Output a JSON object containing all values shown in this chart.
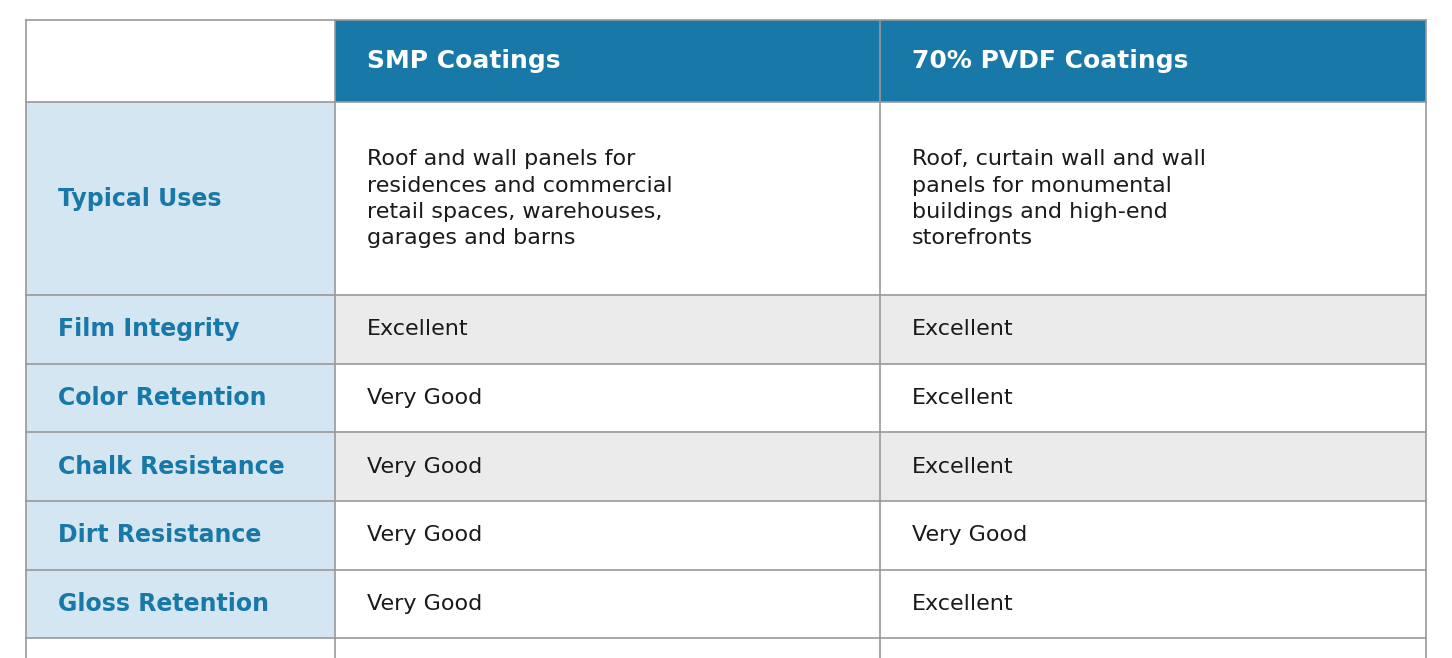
{
  "header_bg_color": "#1878a8",
  "header_text_color": "#ffffff",
  "label_col_bg": "#d4e6f1",
  "row_bg_colors": [
    "#ffffff",
    "#ebebeb",
    "#ffffff",
    "#ebebeb",
    "#ffffff"
  ],
  "border_color": "#999999",
  "label_text_color": "#1878a8",
  "body_text_color": "#1a1a1a",
  "col_headers": [
    "SMP Coatings",
    "70% PVDF Coatings"
  ],
  "row_labels": [
    "Typical Uses",
    "Film Integrity",
    "Color Retention",
    "Chalk Resistance",
    "Dirt Resistance",
    "Gloss Retention"
  ],
  "smp_values": [
    "Roof and wall panels for\nresidences and commercial\nretail spaces, warehouses,\ngarages and barns",
    "Excellent",
    "Very Good",
    "Very Good",
    "Very Good",
    "Very Good"
  ],
  "pvdf_values": [
    "Roof, curtain wall and wall\npanels for monumental\nbuildings and high-end\nstorefronts",
    "Excellent",
    "Excellent",
    "Excellent",
    "Very Good",
    "Excellent"
  ],
  "header_fontsize": 18,
  "label_fontsize": 17,
  "body_fontsize": 16,
  "fig_width": 14.52,
  "fig_height": 6.58,
  "dpi": 100
}
